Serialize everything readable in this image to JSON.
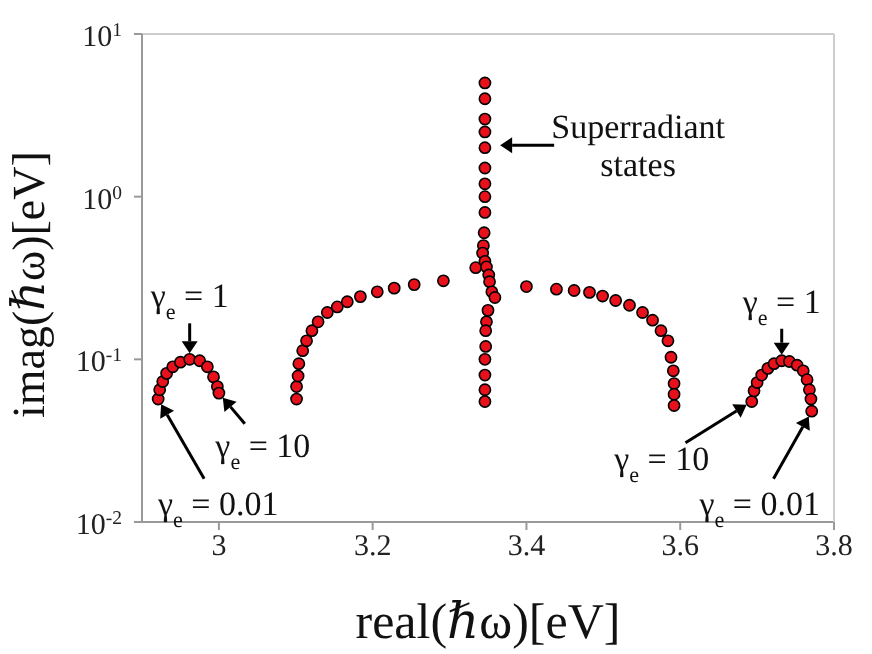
{
  "chart_data": {
    "type": "scatter",
    "xlabel": "real(ℏω)[eV]",
    "ylabel": "imag(ℏω)[eV]",
    "log": "y",
    "grid": false,
    "marker": "circle",
    "xlim": [
      2.9,
      3.8
    ],
    "xticks": [
      3,
      3.2,
      3.4,
      3.6,
      3.8
    ],
    "ylim": [
      0.01,
      10
    ],
    "yticks": [
      {
        "value": 0.01,
        "label": "10$^{-2}$"
      },
      {
        "value": 0.1,
        "label": "10$^{-1}$"
      },
      {
        "value": 1,
        "label": "10$^{0}$"
      },
      {
        "value": 10,
        "label": "10$^{1}$"
      }
    ],
    "series": [
      {
        "color": "#e8101a",
        "x": [
          2.921,
          2.923,
          2.927,
          2.932,
          2.94,
          2.95,
          2.962,
          2.975,
          2.985,
          2.993,
          2.998,
          3.0
        ],
        "values": [
          0.057,
          0.065,
          0.073,
          0.082,
          0.09,
          0.096,
          0.1,
          0.098,
          0.09,
          0.078,
          0.068,
          0.062
        ]
      },
      {
        "color": "#e8101a",
        "x": [
          3.101,
          3.101,
          3.103,
          3.104,
          3.109,
          3.114,
          3.121,
          3.129,
          3.141,
          3.154,
          3.167,
          3.184,
          3.206,
          3.228,
          3.254,
          3.292,
          3.334
        ],
        "values": [
          0.057,
          0.068,
          0.079,
          0.094,
          0.113,
          0.13,
          0.15,
          0.17,
          0.194,
          0.21,
          0.226,
          0.243,
          0.26,
          0.274,
          0.288,
          0.304,
          0.366
        ]
      },
      {
        "color": "#e8101a",
        "x": [
          3.346,
          3.346,
          3.346,
          3.346,
          3.346,
          3.346,
          3.346,
          3.346,
          3.346,
          3.345,
          3.344,
          3.343,
          3.346,
          3.348,
          3.351,
          3.352,
          3.355,
          3.359,
          3.35,
          3.348,
          3.347,
          3.347,
          3.346,
          3.346,
          3.346,
          3.346
        ],
        "values": [
          5.0,
          4.0,
          3.0,
          2.5,
          2.0,
          1.5,
          1.2,
          1.0,
          0.8,
          0.6,
          0.5,
          0.45,
          0.4,
          0.37,
          0.33,
          0.3,
          0.26,
          0.24,
          0.2,
          0.17,
          0.15,
          0.12,
          0.1,
          0.08,
          0.065,
          0.055
        ]
      },
      {
        "color": "#e8101a",
        "x": [
          3.4,
          3.439,
          3.462,
          3.482,
          3.499,
          3.516,
          3.534,
          3.551,
          3.564,
          3.575,
          3.584,
          3.588,
          3.591,
          3.592,
          3.592,
          3.592
        ],
        "values": [
          0.28,
          0.27,
          0.265,
          0.258,
          0.245,
          0.23,
          0.215,
          0.194,
          0.174,
          0.15,
          0.13,
          0.103,
          0.085,
          0.071,
          0.061,
          0.052
        ]
      },
      {
        "color": "#e8101a",
        "x": [
          3.693,
          3.696,
          3.7,
          3.706,
          3.714,
          3.722,
          3.732,
          3.742,
          3.752,
          3.76,
          3.765,
          3.768,
          3.77,
          3.771
        ],
        "values": [
          0.055,
          0.064,
          0.072,
          0.08,
          0.088,
          0.094,
          0.098,
          0.097,
          0.092,
          0.085,
          0.075,
          0.065,
          0.057,
          0.048
        ]
      }
    ],
    "annotations": [
      {
        "text": "Superradiant states",
        "x": 3.358,
        "y": 2.07
      },
      {
        "text": "γ$_{e}$ = 1",
        "x": 2.962,
        "y": 0.1
      },
      {
        "text": "γ$_{e}$ = 10",
        "x": 3.0,
        "y": 0.062
      },
      {
        "text": "γ$_{e}$ = 0.01",
        "x": 2.921,
        "y": 0.057
      },
      {
        "text": "γ$_{e}$ = 1",
        "x": 3.732,
        "y": 0.098
      },
      {
        "text": "γ$_{e}$ = 10",
        "x": 3.693,
        "y": 0.055
      },
      {
        "text": "γ$_{e}$ = 0.01",
        "x": 3.771,
        "y": 0.048
      }
    ]
  }
}
